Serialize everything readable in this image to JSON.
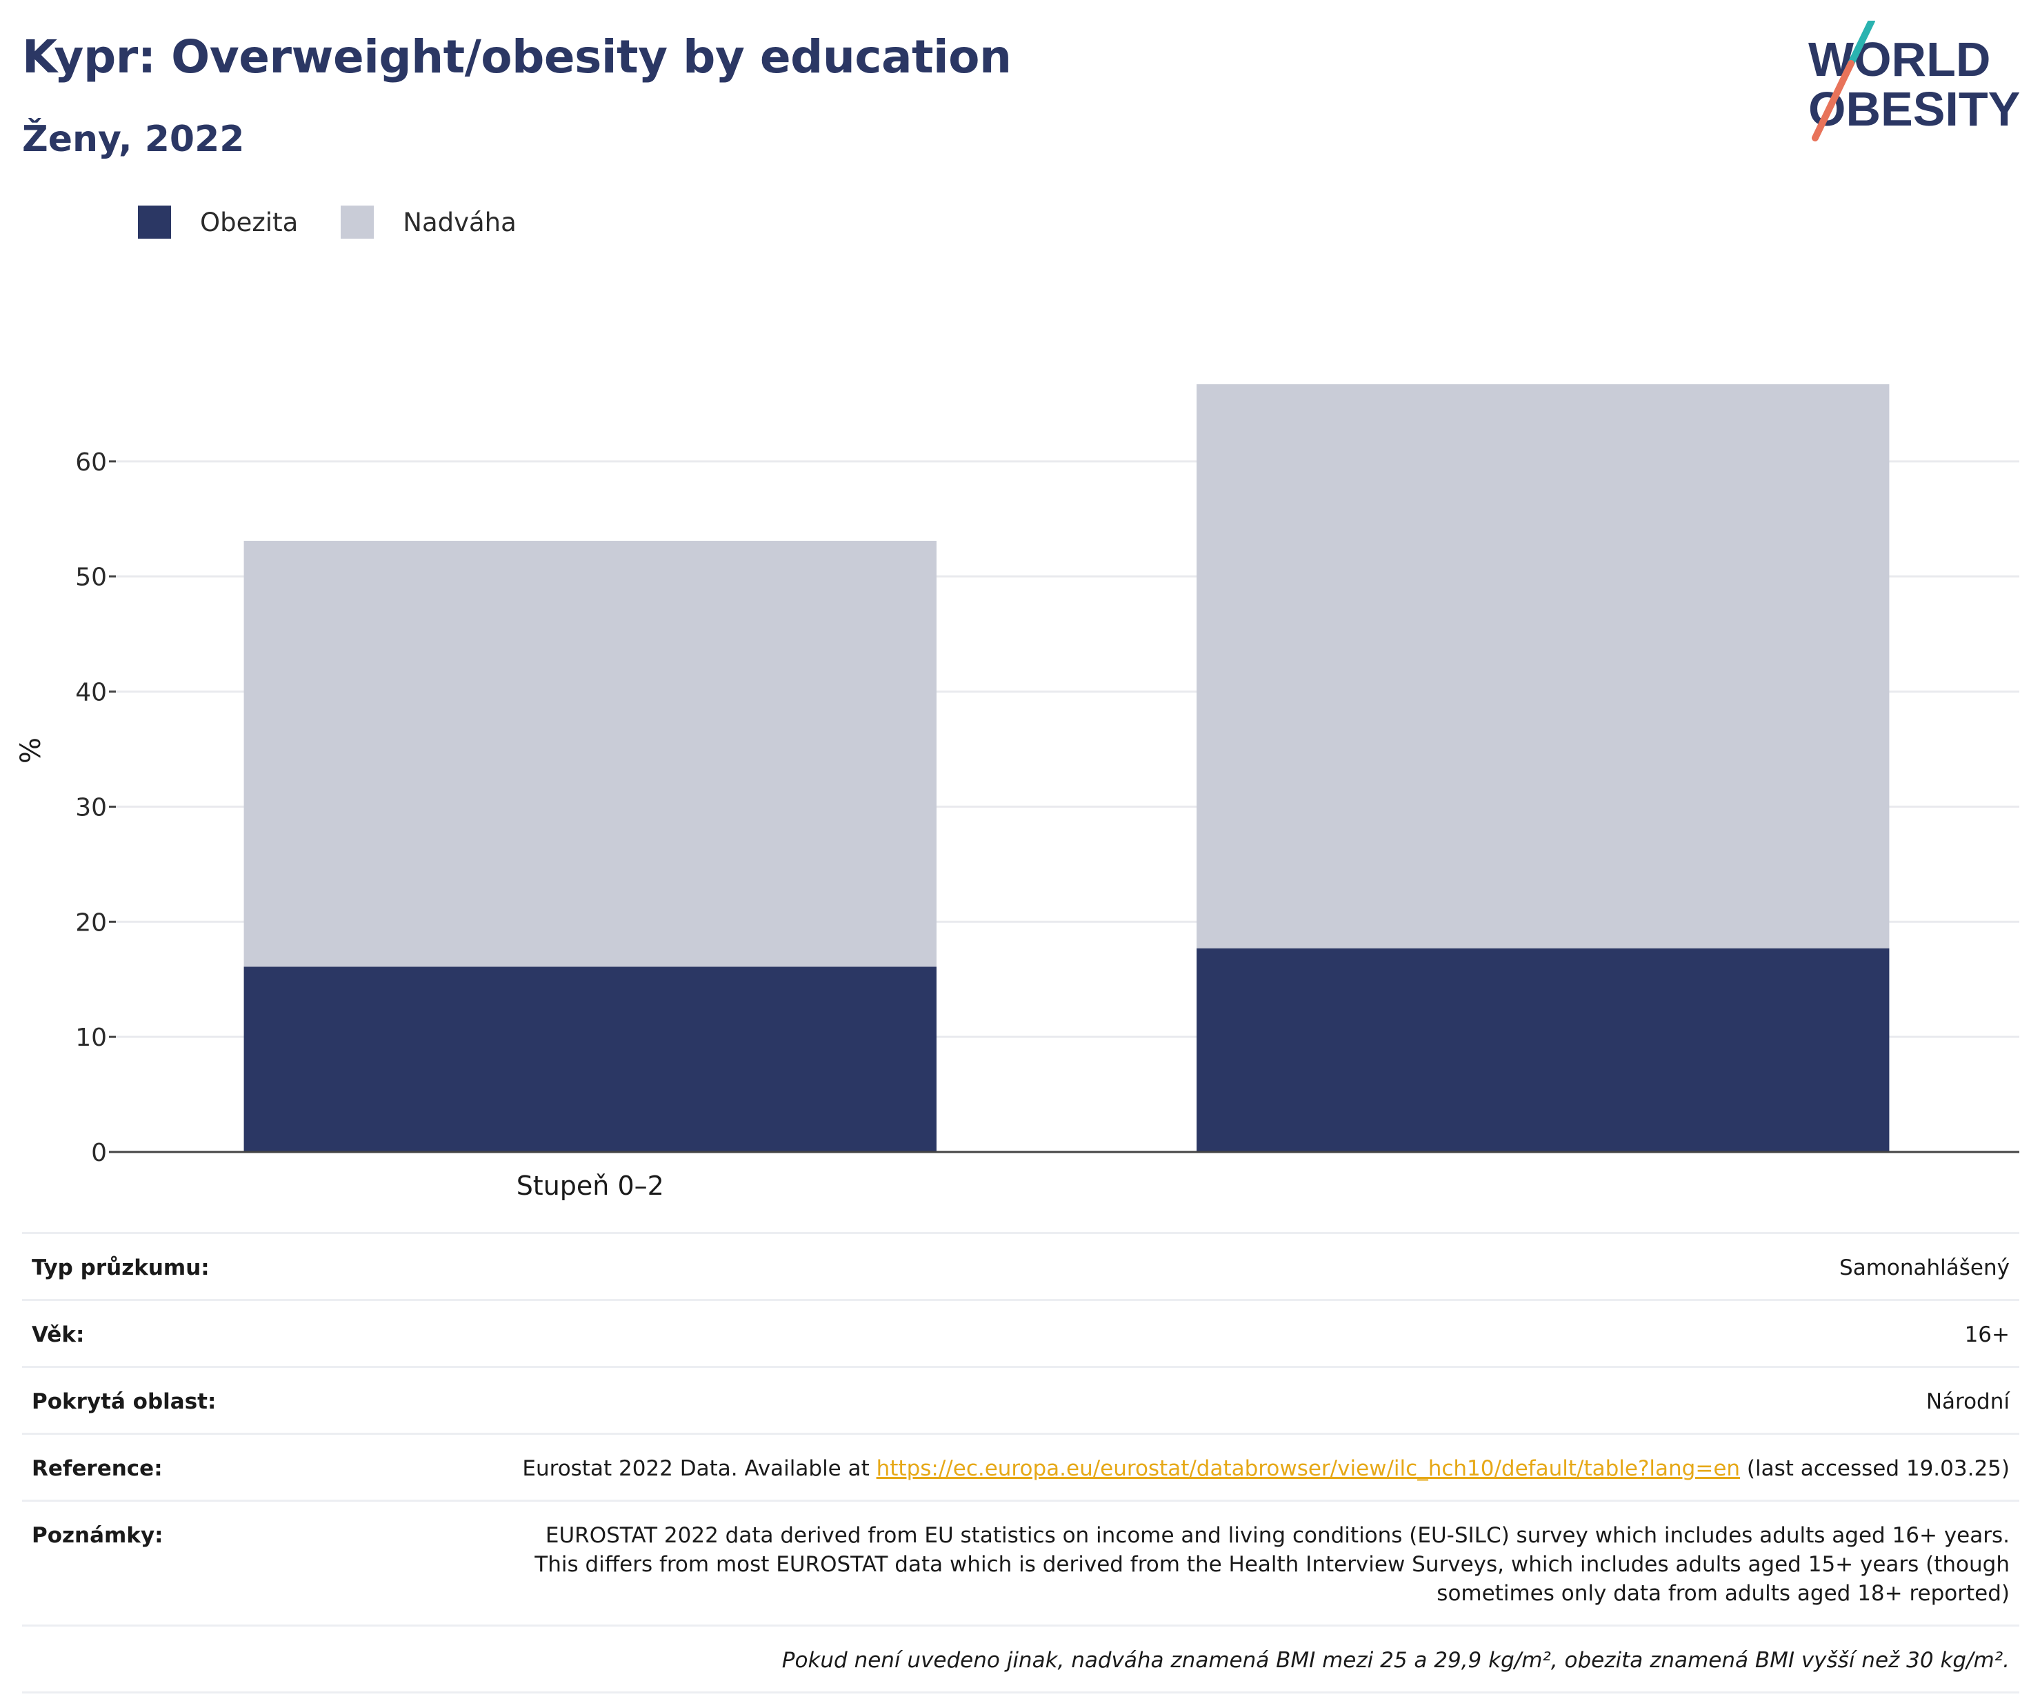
{
  "header": {
    "title": "Kypr: Overweight/obesity by education",
    "subtitle": "Ženy, 2022"
  },
  "logo": {
    "line1": "WORLD",
    "line2": "OBESITY",
    "icon": "world-obesity-logo"
  },
  "colors": {
    "title": "#2b3764",
    "obesity": "#2b3764",
    "overweight": "#c9ccd7",
    "logo_teal": "#2ab3b0",
    "logo_coral": "#e8735a",
    "link": "#e6a817"
  },
  "legend": [
    {
      "name": "Obezita",
      "color": "#2b3764"
    },
    {
      "name": "Nadváha",
      "color": "#c9ccd7"
    }
  ],
  "chart_data": {
    "type": "bar",
    "stacked": true,
    "categories": [
      "Stupeň 0–2",
      ""
    ],
    "series": [
      {
        "name": "Obezita",
        "values": [
          16.1,
          17.7
        ],
        "color": "#2b3764"
      },
      {
        "name": "Nadváha",
        "values": [
          37.0,
          49.0
        ],
        "color": "#c9ccd7"
      }
    ],
    "ylabel": "%",
    "yticks": [
      0,
      10,
      20,
      30,
      40,
      50,
      60
    ],
    "ylim": [
      0,
      70
    ],
    "grid": true,
    "legend_position": "top-left"
  },
  "info": {
    "survey_type_label": "Typ průzkumu:",
    "survey_type_value": "Samonahlášený",
    "age_label": "Věk:",
    "age_value": "16+",
    "area_label": "Pokrytá oblast:",
    "area_value": "Národní",
    "reference_label": "Reference:",
    "reference_prefix": "Eurostat 2022 Data. Available at",
    "reference_link": "https://ec.europa.eu/eurostat/databrowser/view/ilc_hch10/default/table?lang=en",
    "reference_suffix": "(last accessed 19.03.25)",
    "notes_label": "Poznámky:",
    "notes_value": "EUROSTAT 2022 data derived from EU statistics on income and living conditions (EU-SILC) survey which includes adults aged 16+ years. This differs from most EUROSTAT data which is derived from the Health Interview Surveys, which includes adults aged 15+ years (though sometimes only data from adults aged 18+ reported)",
    "footnote": "Pokud není uvedeno jinak, nadváha znamená BMI mezi 25 a 29,9 kg/m², obezita znamená BMI vyšší než 30 kg/m²."
  }
}
